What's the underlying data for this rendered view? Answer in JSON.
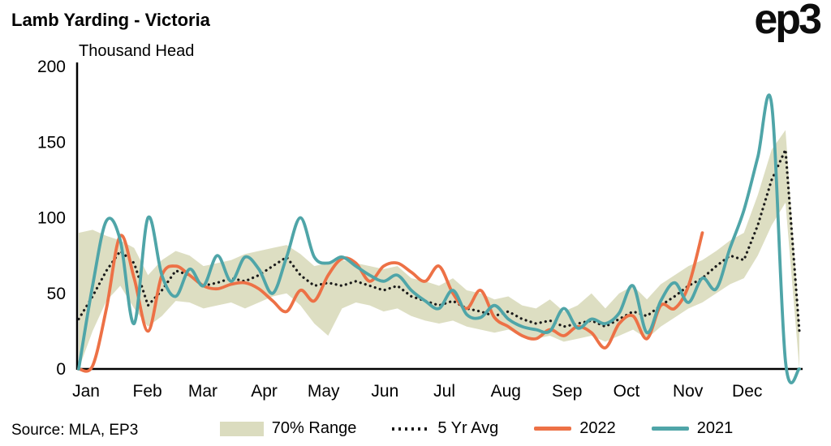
{
  "header": {
    "logo": "ep3"
  },
  "footer": {
    "source": "Source: MLA, EP3"
  },
  "chart_data": {
    "type": "line",
    "title": "Lamb Yarding - Victoria",
    "ylabel": "Thousand Head",
    "ylim": [
      0,
      200
    ],
    "yticks": [
      0,
      50,
      100,
      150,
      200
    ],
    "grid": false,
    "legend_position": "bottom",
    "axis_color": "#000000",
    "x_axis": {
      "unit": "week-of-year",
      "range": [
        0,
        52
      ],
      "month_labels": [
        "Jan",
        "Feb",
        "Mar",
        "Apr",
        "May",
        "Jun",
        "Jul",
        "Aug",
        "Sep",
        "Oct",
        "Nov",
        "Dec"
      ],
      "month_week_positions": [
        0,
        4.43,
        8.43,
        12.86,
        17.14,
        21.57,
        25.86,
        30.29,
        34.71,
        39.0,
        43.43,
        47.71
      ]
    },
    "series": [
      {
        "name": "70% Range",
        "type": "band",
        "color": "#DBDCBF",
        "lower": [
          0,
          25,
          45,
          55,
          40,
          28,
          35,
          45,
          44,
          40,
          42,
          44,
          40,
          44,
          48,
          50,
          42,
          30,
          22,
          40,
          44,
          42,
          38,
          40,
          35,
          32,
          30,
          32,
          28,
          26,
          24,
          26,
          22,
          20,
          22,
          18,
          20,
          22,
          18,
          22,
          26,
          20,
          28,
          34,
          40,
          44,
          50,
          56,
          60,
          75,
          95,
          110,
          0
        ],
        "upper": [
          90,
          92,
          88,
          85,
          80,
          62,
          72,
          78,
          75,
          68,
          70,
          72,
          76,
          78,
          80,
          82,
          76,
          68,
          70,
          72,
          70,
          68,
          66,
          68,
          60,
          58,
          55,
          60,
          52,
          50,
          46,
          48,
          42,
          40,
          46,
          38,
          42,
          50,
          40,
          50,
          55,
          46,
          56,
          62,
          68,
          72,
          78,
          85,
          90,
          115,
          145,
          158,
          30
        ]
      },
      {
        "name": "5 Yr Avg",
        "type": "dotted-line",
        "color": "#1A1A1A",
        "values": [
          33,
          48,
          65,
          78,
          70,
          42,
          52,
          65,
          62,
          55,
          57,
          60,
          58,
          62,
          68,
          74,
          62,
          55,
          57,
          55,
          58,
          55,
          52,
          55,
          48,
          45,
          42,
          45,
          40,
          38,
          35,
          38,
          33,
          30,
          32,
          28,
          30,
          32,
          28,
          33,
          38,
          35,
          42,
          48,
          55,
          60,
          68,
          75,
          72,
          95,
          125,
          145,
          25
        ]
      },
      {
        "name": "2022",
        "type": "line",
        "color": "#ED7146",
        "values": [
          0,
          2,
          40,
          88,
          60,
          25,
          62,
          68,
          62,
          55,
          53,
          56,
          57,
          53,
          45,
          38,
          52,
          45,
          62,
          73,
          70,
          58,
          68,
          70,
          64,
          58,
          68,
          50,
          40,
          52,
          34,
          28,
          22,
          20,
          26,
          22,
          28,
          24,
          14,
          30,
          35,
          20,
          42,
          40,
          55,
          90,
          null,
          null,
          null,
          null,
          null,
          null,
          null
        ]
      },
      {
        "name": "2021",
        "type": "line",
        "color": "#4FA5A8",
        "values": [
          0,
          55,
          98,
          85,
          30,
          100,
          62,
          48,
          66,
          55,
          75,
          58,
          74,
          66,
          50,
          74,
          100,
          74,
          70,
          74,
          68,
          62,
          58,
          62,
          52,
          45,
          40,
          52,
          36,
          34,
          42,
          33,
          28,
          26,
          25,
          40,
          27,
          33,
          30,
          37,
          55,
          24,
          45,
          57,
          44,
          60,
          53,
          80,
          105,
          140,
          175,
          5,
          0
        ]
      }
    ]
  }
}
